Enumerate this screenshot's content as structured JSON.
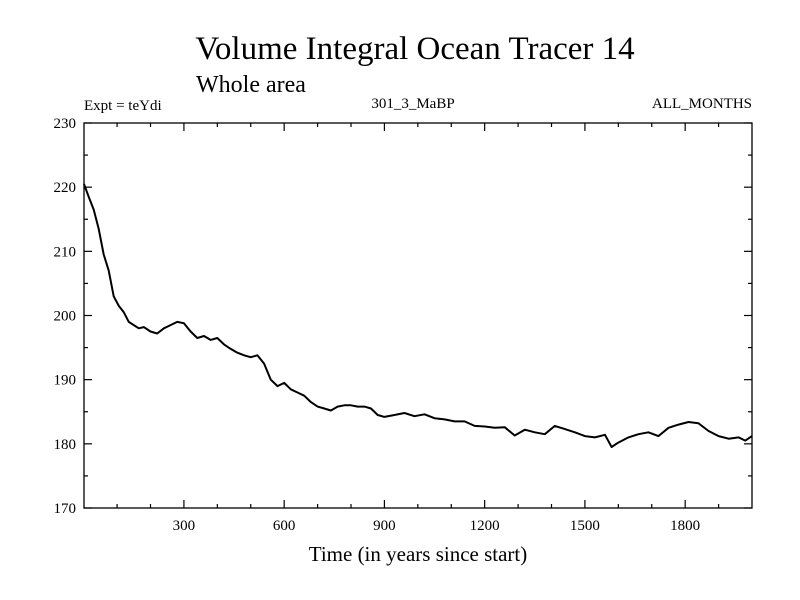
{
  "chart_data": {
    "type": "line",
    "title": "Volume Integral Ocean Tracer 14",
    "subtitle": "Whole area",
    "annotations": {
      "experiment": "Expt = teYdi",
      "run": "301_3_MaBP",
      "period": "ALL_MONTHS"
    },
    "xlabel": "Time (in years since start)",
    "ylabel": "",
    "xlim": [
      1,
      2000
    ],
    "ylim": [
      170,
      230
    ],
    "xticks": [
      300,
      600,
      900,
      1200,
      1500,
      1800
    ],
    "yticks": [
      170,
      180,
      190,
      200,
      210,
      220,
      230
    ],
    "grid": false,
    "series": [
      {
        "name": "Volume Integral Ocean Tracer 14",
        "color": "#000000",
        "x": [
          1,
          15,
          30,
          45,
          60,
          75,
          90,
          105,
          120,
          135,
          150,
          165,
          180,
          200,
          220,
          240,
          260,
          280,
          300,
          320,
          340,
          360,
          380,
          400,
          420,
          440,
          460,
          480,
          500,
          520,
          540,
          560,
          580,
          600,
          620,
          640,
          660,
          680,
          700,
          720,
          740,
          760,
          780,
          800,
          820,
          840,
          860,
          880,
          900,
          930,
          960,
          990,
          1020,
          1050,
          1080,
          1110,
          1140,
          1170,
          1200,
          1230,
          1260,
          1290,
          1320,
          1350,
          1380,
          1410,
          1440,
          1470,
          1500,
          1530,
          1560,
          1580,
          1600,
          1630,
          1660,
          1690,
          1720,
          1750,
          1780,
          1810,
          1840,
          1870,
          1900,
          1930,
          1960,
          1980,
          2000
        ],
        "values": [
          220.5,
          218.5,
          216.5,
          213.5,
          209.5,
          207,
          203,
          201.5,
          200.5,
          199,
          198.5,
          198,
          198.2,
          197.5,
          197.2,
          198,
          198.5,
          199,
          198.8,
          197.5,
          196.5,
          196.8,
          196.2,
          196.5,
          195.5,
          194.8,
          194.2,
          193.8,
          193.5,
          193.8,
          192.5,
          190,
          189,
          189.5,
          188.5,
          188,
          187.5,
          186.5,
          185.8,
          185.5,
          185.2,
          185.8,
          186,
          186,
          185.8,
          185.8,
          185.5,
          184.5,
          184.2,
          184.5,
          184.8,
          184.3,
          184.6,
          184,
          183.8,
          183.5,
          183.5,
          182.8,
          182.7,
          182.5,
          182.6,
          181.3,
          182.2,
          181.8,
          181.5,
          182.8,
          182.3,
          181.8,
          181.2,
          181,
          181.4,
          179.5,
          180.2,
          181,
          181.5,
          181.8,
          181.2,
          182.5,
          183,
          183.4,
          183.2,
          182,
          181.2,
          180.8,
          181,
          180.5,
          181.2
        ]
      }
    ]
  }
}
